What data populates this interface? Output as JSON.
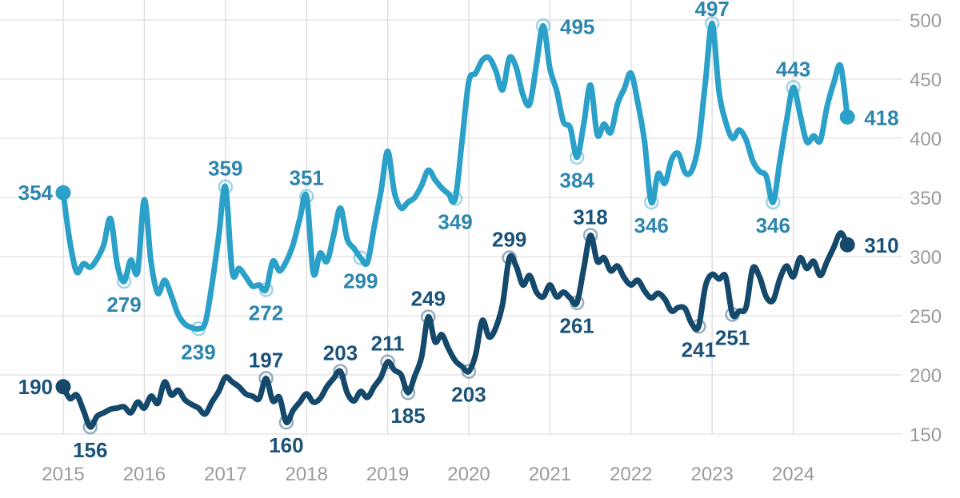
{
  "page": {
    "background": "#ffffff"
  },
  "chart_data": {
    "type": "line",
    "title": "",
    "legend": "none",
    "grid": true,
    "x_axis": {
      "tick_labels": [
        "2015",
        "2016",
        "2017",
        "2018",
        "2019",
        "2020",
        "2021",
        "2022",
        "2023",
        "2024"
      ],
      "frequency": "monthly",
      "start": "2015-01",
      "end": "2024-09",
      "label_color": "#9b9b9b"
    },
    "y_axis": {
      "side": "right",
      "ticks": [
        150,
        200,
        250,
        300,
        350,
        400,
        450,
        500
      ],
      "range": [
        150,
        500
      ],
      "label_color": "#9b9b9b"
    },
    "grid_color_h": "#e6e6e6",
    "grid_color_v": "#e0e0e0",
    "series": [
      {
        "name": "upper-line",
        "color": "#2ba0c9",
        "label_color": "#2c86ae",
        "values": [
          354,
          312,
          287,
          294,
          291,
          298,
          310,
          332,
          293,
          279,
          297,
          287,
          348,
          295,
          269,
          280,
          267,
          251,
          243,
          240,
          239,
          244,
          276,
          317,
          359,
          287,
          290,
          283,
          275,
          276,
          272,
          296,
          288,
          296,
          310,
          332,
          351,
          286,
          303,
          296,
          318,
          341,
          315,
          307,
          299,
          295,
          325,
          355,
          389,
          354,
          341,
          346,
          350,
          360,
          373,
          365,
          358,
          353,
          349,
          398,
          448,
          455,
          466,
          468,
          457,
          441,
          468,
          460,
          437,
          429,
          462,
          495,
          459,
          440,
          414,
          409,
          384,
          412,
          445,
          403,
          412,
          405,
          429,
          442,
          455,
          430,
          397,
          346,
          370,
          362,
          382,
          387,
          371,
          373,
          396,
          448,
          497,
          440,
          414,
          400,
          407,
          399,
          381,
          372,
          368,
          346,
          380,
          415,
          443,
          420,
          397,
          402,
          398,
          427,
          447,
          461,
          418
        ],
        "labels": [
          {
            "i": 0,
            "text": "354",
            "pos": "left",
            "marker": "dot"
          },
          {
            "i": 9,
            "text": "279",
            "pos": "below",
            "marker": "ring"
          },
          {
            "i": 20,
            "text": "239",
            "pos": "below",
            "marker": "ring"
          },
          {
            "i": 24,
            "text": "359",
            "pos": "above",
            "marker": "ring"
          },
          {
            "i": 30,
            "text": "272",
            "pos": "below",
            "marker": "ring"
          },
          {
            "i": 36,
            "text": "351",
            "pos": "above",
            "marker": "ring"
          },
          {
            "i": 44,
            "text": "299",
            "pos": "below",
            "marker": "ring"
          },
          {
            "i": 58,
            "text": "349",
            "pos": "below",
            "marker": "ring"
          },
          {
            "i": 71,
            "text": "495",
            "pos": "right",
            "marker": "ring"
          },
          {
            "i": 76,
            "text": "384",
            "pos": "below",
            "marker": "ring"
          },
          {
            "i": 87,
            "text": "346",
            "pos": "below",
            "marker": "ring"
          },
          {
            "i": 96,
            "text": "497",
            "pos": "above",
            "marker": "ring"
          },
          {
            "i": 105,
            "text": "346",
            "pos": "below",
            "marker": "ring"
          },
          {
            "i": 108,
            "text": "443",
            "pos": "above",
            "marker": "ring"
          },
          {
            "i": 116,
            "text": "418",
            "pos": "right",
            "marker": "dot"
          }
        ]
      },
      {
        "name": "lower-line",
        "color": "#14496b",
        "label_color": "#1a527a",
        "values": [
          190,
          180,
          183,
          170,
          156,
          165,
          168,
          171,
          172,
          173,
          168,
          177,
          172,
          182,
          176,
          194,
          183,
          187,
          179,
          175,
          172,
          167,
          177,
          186,
          198,
          194,
          190,
          184,
          182,
          180,
          197,
          178,
          181,
          160,
          170,
          177,
          184,
          177,
          180,
          190,
          197,
          203,
          185,
          178,
          186,
          181,
          190,
          198,
          211,
          204,
          200,
          185,
          199,
          215,
          249,
          228,
          234,
          222,
          212,
          207,
          203,
          217,
          246,
          232,
          240,
          260,
          299,
          292,
          276,
          284,
          270,
          266,
          276,
          266,
          270,
          265,
          261,
          290,
          318,
          296,
          299,
          288,
          292,
          282,
          276,
          280,
          271,
          265,
          269,
          264,
          254,
          257,
          256,
          243,
          241,
          275,
          285,
          281,
          283,
          251,
          254,
          257,
          290,
          283,
          266,
          263,
          281,
          292,
          283,
          299,
          290,
          296,
          284,
          296,
          308,
          320,
          310
        ],
        "labels": [
          {
            "i": 0,
            "text": "190",
            "pos": "left",
            "marker": "dot"
          },
          {
            "i": 4,
            "text": "156",
            "pos": "below",
            "marker": "ring"
          },
          {
            "i": 30,
            "text": "197",
            "pos": "above",
            "marker": "ring"
          },
          {
            "i": 33,
            "text": "160",
            "pos": "below",
            "marker": "ring"
          },
          {
            "i": 41,
            "text": "203",
            "pos": "above",
            "marker": "ring"
          },
          {
            "i": 48,
            "text": "211",
            "pos": "above",
            "marker": "ring"
          },
          {
            "i": 51,
            "text": "185",
            "pos": "below",
            "marker": "ring"
          },
          {
            "i": 54,
            "text": "249",
            "pos": "above",
            "marker": "ring"
          },
          {
            "i": 60,
            "text": "203",
            "pos": "below",
            "marker": "ring"
          },
          {
            "i": 66,
            "text": "299",
            "pos": "above",
            "marker": "ring"
          },
          {
            "i": 76,
            "text": "261",
            "pos": "below",
            "marker": "ring"
          },
          {
            "i": 78,
            "text": "318",
            "pos": "above",
            "marker": "ring"
          },
          {
            "i": 94,
            "text": "241",
            "pos": "below",
            "marker": "ring"
          },
          {
            "i": 99,
            "text": "251",
            "pos": "below",
            "marker": "ring"
          },
          {
            "i": 116,
            "text": "310",
            "pos": "right",
            "marker": "dot"
          }
        ]
      }
    ]
  }
}
